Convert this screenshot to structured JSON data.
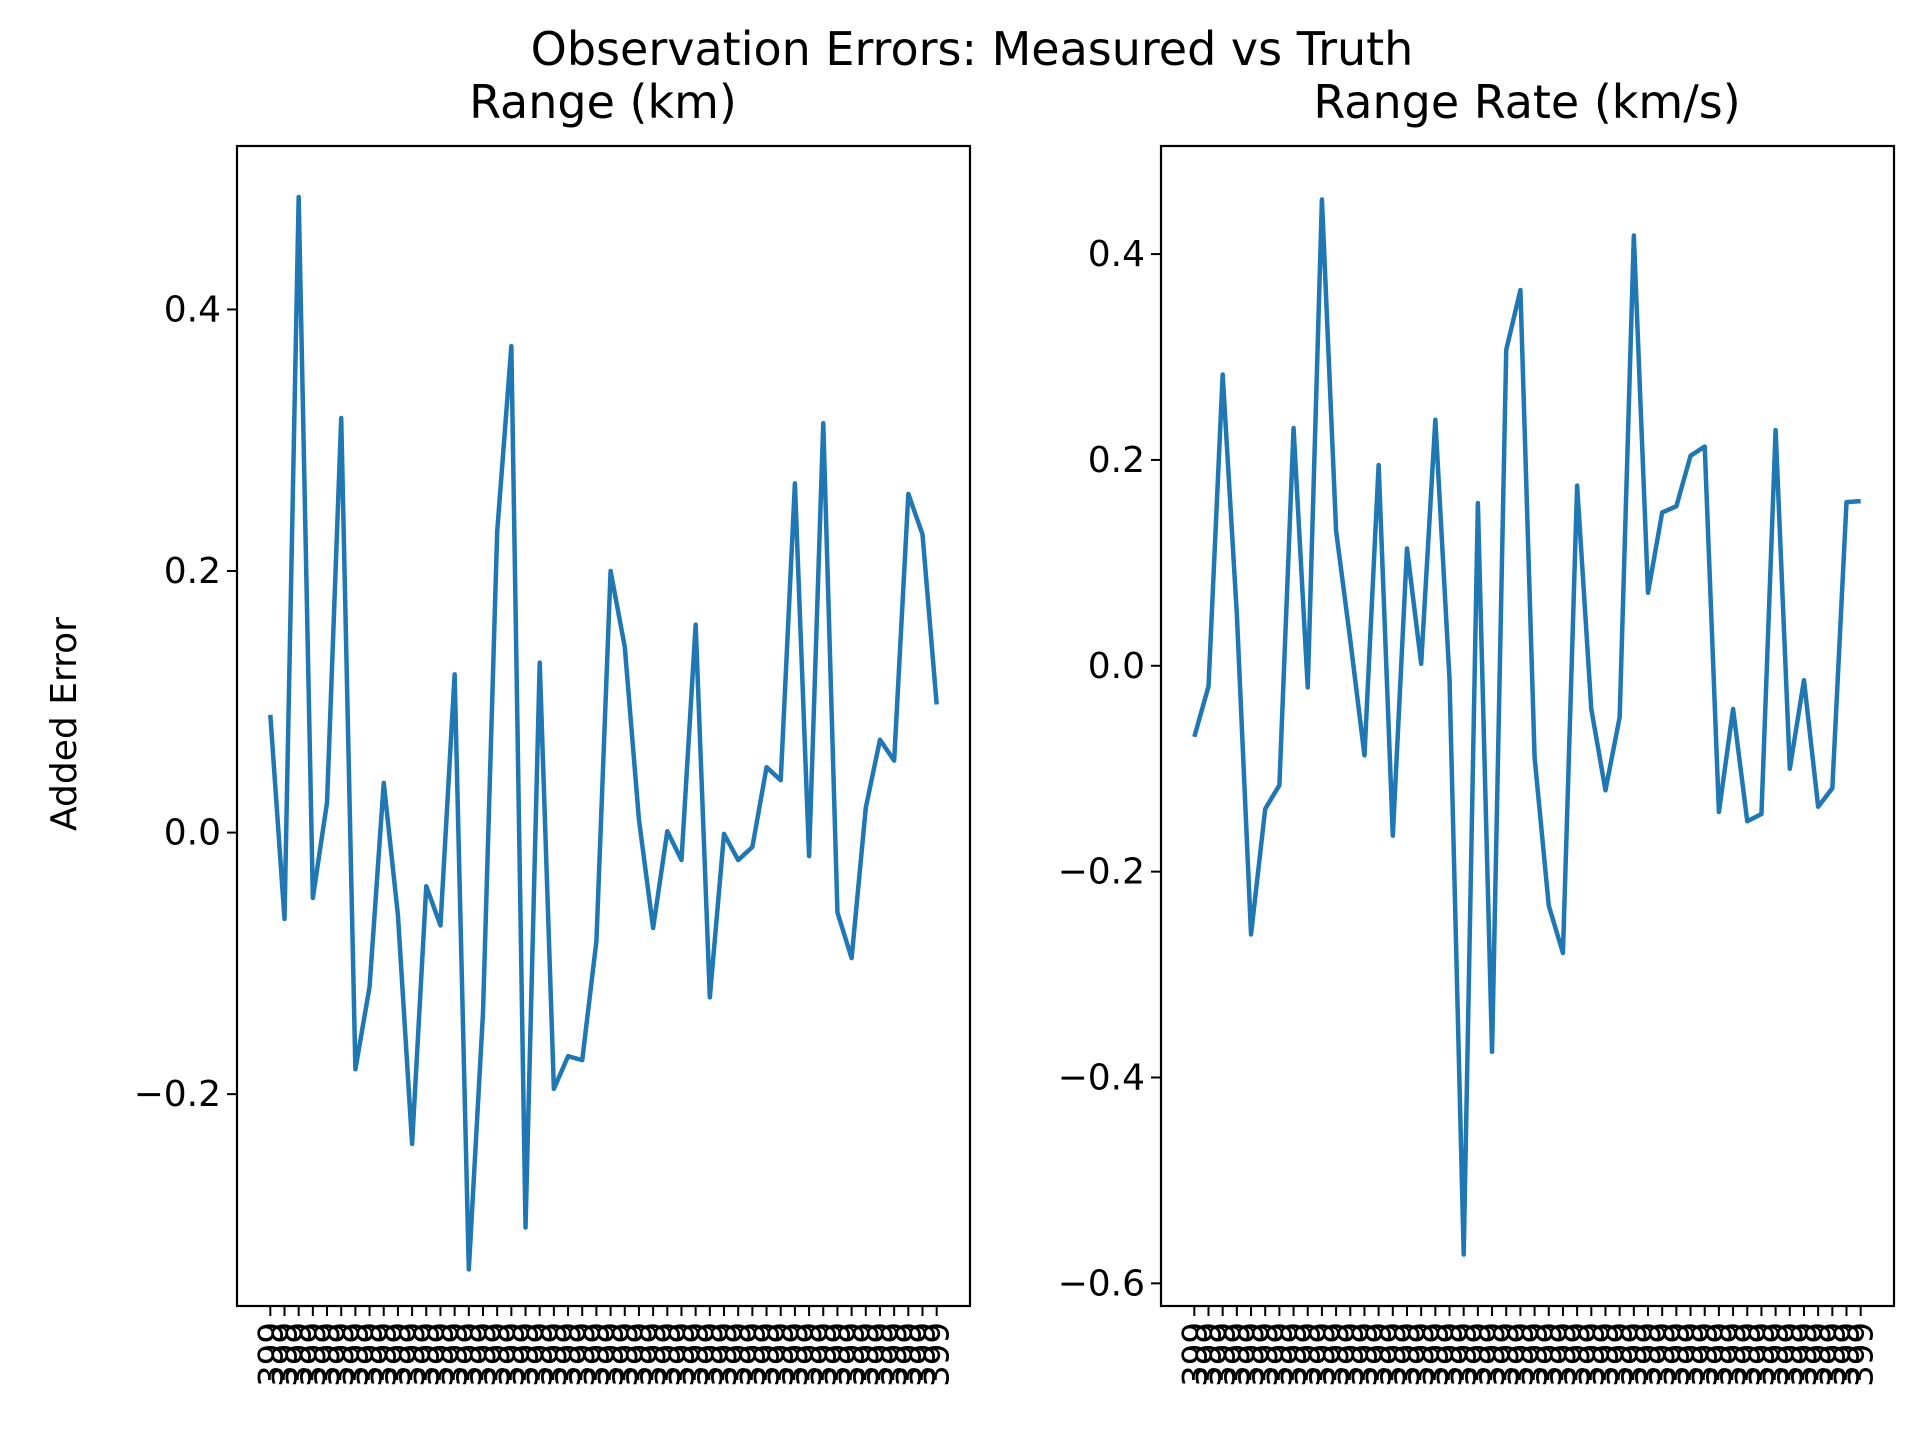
{
  "suptitle": "Observation Errors: Measured vs Truth",
  "colors": {
    "line": "#1f77b4",
    "axes": "#000000",
    "background": "#ffffff"
  },
  "chart_data": [
    {
      "type": "line",
      "title": "Range (km)",
      "xlabel": "",
      "ylabel": "Added Error",
      "yticks": [
        "0.4",
        "0.2",
        "0.0",
        "−0.2"
      ],
      "ytick_values": [
        0.4,
        0.2,
        0.0,
        -0.2
      ],
      "ylim": [
        -0.362,
        0.525
      ],
      "grid": false,
      "xtick_labels": [
        "399",
        "399",
        "399",
        "399",
        "399",
        "399",
        "399",
        "399",
        "399",
        "399",
        "399",
        "399",
        "399",
        "399",
        "399",
        "399",
        "399",
        "399",
        "399",
        "399",
        "399",
        "399",
        "399",
        "399",
        "399",
        "399",
        "399",
        "399",
        "399",
        "399",
        "399",
        "399",
        "399",
        "399",
        "399",
        "399",
        "399",
        "399",
        "399",
        "399",
        "399",
        "399",
        "399",
        "399",
        "399",
        "399",
        "399",
        "399"
      ],
      "x": [
        1,
        2,
        3,
        4,
        5,
        6,
        7,
        8,
        9,
        10,
        11,
        12,
        13,
        14,
        15,
        16,
        17,
        18,
        19,
        20,
        21,
        22,
        23,
        24,
        25,
        26,
        27,
        28,
        29,
        30,
        31,
        32,
        33,
        34,
        35,
        36,
        37,
        38,
        39,
        40,
        41,
        42,
        43,
        44,
        45,
        46,
        47,
        48
      ],
      "values": [
        0.09,
        -0.066,
        0.486,
        -0.05,
        0.023,
        0.317,
        -0.181,
        -0.118,
        0.038,
        -0.063,
        -0.238,
        -0.041,
        -0.071,
        0.121,
        -0.334,
        -0.138,
        0.23,
        0.372,
        -0.302,
        0.13,
        -0.196,
        -0.171,
        -0.174,
        -0.083,
        0.2,
        0.142,
        0.01,
        -0.073,
        0.001,
        -0.021,
        0.159,
        -0.126,
        -0.001,
        -0.021,
        -0.011,
        0.05,
        0.04,
        0.267,
        -0.018,
        0.313,
        -0.061,
        -0.096,
        0.019,
        0.071,
        0.055,
        0.259,
        0.228,
        0.098
      ]
    },
    {
      "type": "line",
      "title": "Range Rate (km/s)",
      "xlabel": "",
      "ylabel": "",
      "yticks": [
        "0.4",
        "0.2",
        "0.0",
        "−0.2",
        "−0.4",
        "−0.6"
      ],
      "ytick_values": [
        0.4,
        0.2,
        0.0,
        -0.2,
        -0.4,
        -0.6
      ],
      "ylim": [
        -0.622,
        0.505
      ],
      "grid": false,
      "xtick_labels": [
        "399",
        "399",
        "399",
        "399",
        "399",
        "399",
        "399",
        "399",
        "399",
        "399",
        "399",
        "399",
        "399",
        "399",
        "399",
        "399",
        "399",
        "399",
        "399",
        "399",
        "399",
        "399",
        "399",
        "399",
        "399",
        "399",
        "399",
        "399",
        "399",
        "399",
        "399",
        "399",
        "399",
        "399",
        "399",
        "399",
        "399",
        "399",
        "399",
        "399",
        "399",
        "399",
        "399",
        "399",
        "399",
        "399",
        "399",
        "399"
      ],
      "x": [
        1,
        2,
        3,
        4,
        5,
        6,
        7,
        8,
        9,
        10,
        11,
        12,
        13,
        14,
        15,
        16,
        17,
        18,
        19,
        20,
        21,
        22,
        23,
        24,
        25,
        26,
        27,
        28,
        29,
        30,
        31,
        32,
        33,
        34,
        35,
        36,
        37,
        38,
        39,
        40,
        41,
        42,
        43,
        44,
        45,
        46,
        47,
        48
      ],
      "values": [
        -0.069,
        -0.02,
        0.283,
        0.05,
        -0.261,
        -0.139,
        -0.116,
        0.231,
        -0.021,
        0.453,
        0.131,
        0.025,
        -0.087,
        0.195,
        -0.165,
        0.114,
        0.002,
        0.239,
        -0.013,
        -0.572,
        0.158,
        -0.375,
        0.307,
        0.365,
        -0.089,
        -0.233,
        -0.279,
        0.175,
        -0.042,
        -0.121,
        -0.05,
        0.418,
        0.071,
        0.149,
        0.155,
        0.204,
        0.213,
        -0.142,
        -0.042,
        -0.151,
        -0.144,
        0.229,
        -0.1,
        -0.014,
        -0.137,
        -0.119,
        0.159,
        0.16
      ]
    }
  ]
}
